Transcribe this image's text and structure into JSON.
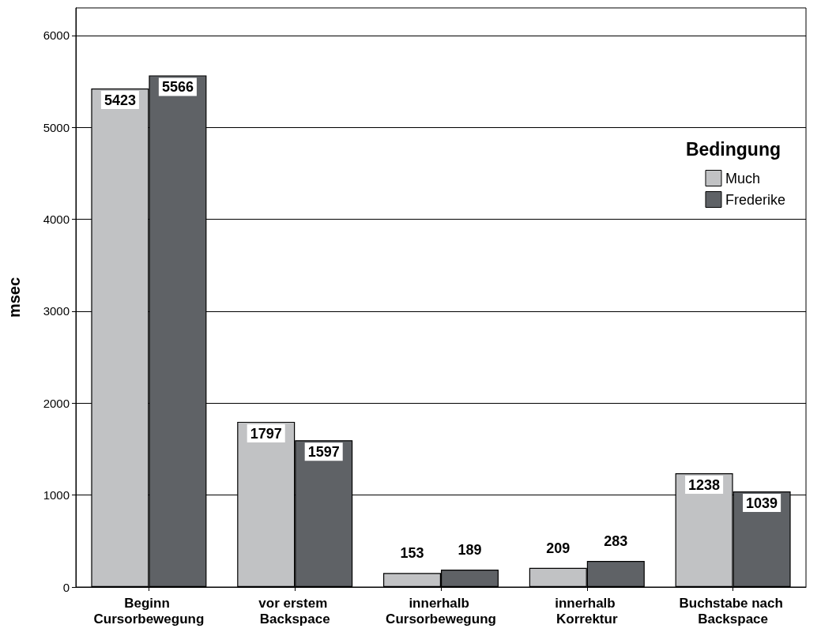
{
  "chart_data": {
    "type": "bar",
    "ylabel": "msec",
    "legend_title": "Bedingung",
    "categories": [
      "Beginn Cursorbewegung",
      "vor erstem Backspace",
      "innerhalb Cursorbewegung",
      "innerhalb Korrektur",
      "Buchstabe nach Backspace"
    ],
    "series": [
      {
        "name": "Much",
        "color": "#c1c2c4",
        "values": [
          5423,
          1797,
          153,
          209,
          1238
        ]
      },
      {
        "name": "Frederike",
        "color": "#5f6266",
        "values": [
          5566,
          1597,
          189,
          283,
          1039
        ]
      }
    ],
    "ylim": [
      0,
      6300
    ],
    "yticks": [
      0,
      1000,
      2000,
      3000,
      4000,
      5000,
      6000
    ],
    "grid": "y",
    "legend": "top right",
    "data_labels": true
  }
}
